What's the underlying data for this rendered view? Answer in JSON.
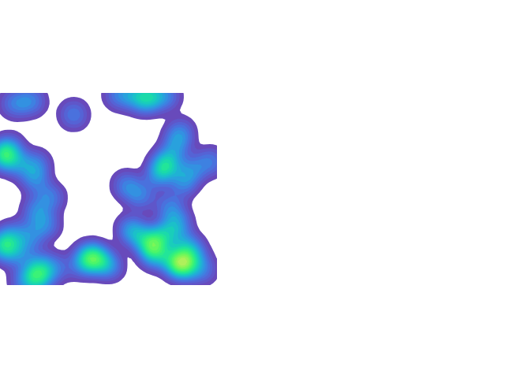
{
  "chart_data": {
    "type": "density",
    "x": [
      150,
      170,
      190,
      210,
      185,
      18,
      40,
      93,
      3,
      3,
      12,
      22,
      45,
      44,
      63,
      45,
      58,
      38,
      3,
      3,
      15,
      22,
      48,
      70,
      48,
      48,
      30,
      115,
      115,
      105,
      127,
      138,
      210,
      210,
      222,
      228,
      200,
      232,
      160,
      178,
      242,
      266,
      215,
      225,
      215,
      175,
      192,
      192,
      200,
      235,
      230,
      230,
      230,
      245,
      255,
      218,
      196,
      165
    ],
    "y": [
      360,
      359,
      360,
      358,
      352,
      349,
      352,
      335,
      283,
      283,
      292,
      272,
      272,
      252,
      230,
      212,
      195,
      180,
      168,
      168,
      182,
      158,
      145,
      140,
      128,
      128,
      124,
      155,
      155,
      145,
      150,
      142,
      272,
      272,
      295,
      312,
      258,
      248,
      245,
      232,
      265,
      275,
      218,
      198,
      185,
      180,
      168,
      168,
      180,
      170,
      144,
      144,
      144,
      158,
      138,
      152,
      154,
      190
    ],
    "xlim": [
      0,
      275
    ],
    "ylim": [
      118,
      362
    ],
    "color": "cool",
    "tick_labels": false
  }
}
